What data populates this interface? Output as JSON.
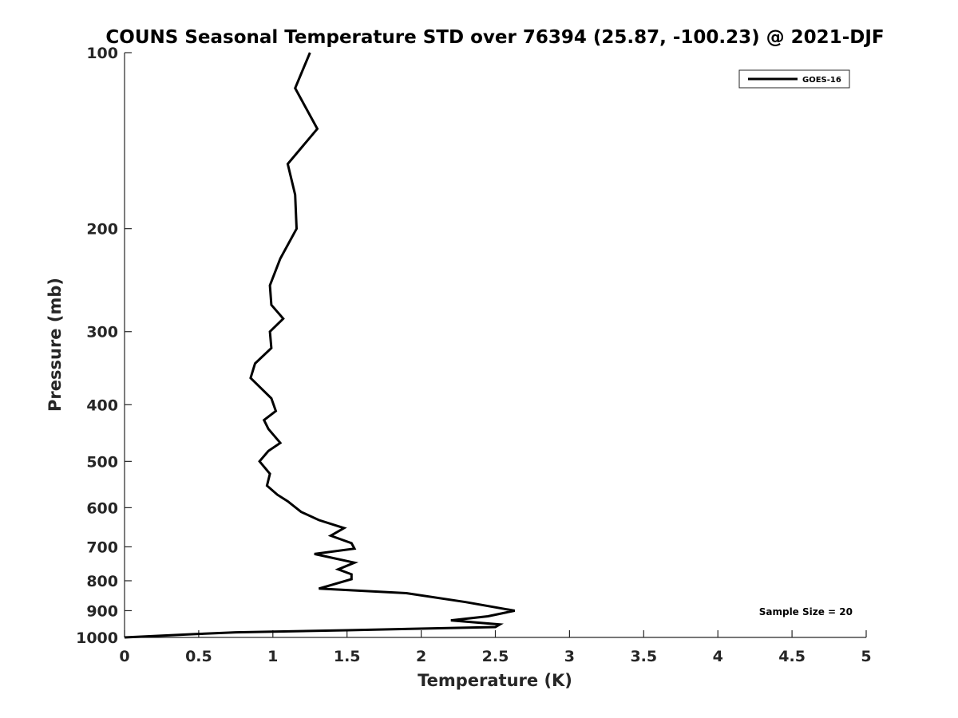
{
  "chart_data": {
    "type": "line",
    "title": "COUNS Seasonal Temperature STD over 76394 (25.87, -100.23) @ 2021-DJF",
    "xlabel": "Temperature (K)",
    "ylabel": "Pressure (mb)",
    "xlim": [
      0,
      5
    ],
    "ylim": [
      1000,
      100
    ],
    "y_scale": "log",
    "y_reversed": true,
    "x_ticks": [
      "0",
      "0.5",
      "1",
      "1.5",
      "2",
      "2.5",
      "3",
      "3.5",
      "4",
      "4.5",
      "5"
    ],
    "y_ticks": [
      "100",
      "200",
      "300",
      "400",
      "500",
      "600",
      "700",
      "800",
      "900",
      "1000"
    ],
    "grid": false,
    "legend_position": "top-right",
    "annotation": "Sample Size = 20",
    "series": [
      {
        "name": "GOES-16",
        "color": "#000000",
        "points": [
          [
            1.25,
            100
          ],
          [
            1.15,
            115
          ],
          [
            1.3,
            135
          ],
          [
            1.1,
            155
          ],
          [
            1.15,
            175
          ],
          [
            1.16,
            200
          ],
          [
            1.05,
            225
          ],
          [
            0.98,
            250
          ],
          [
            0.99,
            270
          ],
          [
            1.07,
            285
          ],
          [
            0.98,
            300
          ],
          [
            0.99,
            320
          ],
          [
            0.88,
            340
          ],
          [
            0.85,
            360
          ],
          [
            0.99,
            390
          ],
          [
            1.02,
            410
          ],
          [
            0.94,
            425
          ],
          [
            0.97,
            440
          ],
          [
            1.05,
            465
          ],
          [
            0.97,
            480
          ],
          [
            0.91,
            500
          ],
          [
            0.98,
            525
          ],
          [
            0.96,
            550
          ],
          [
            1.03,
            570
          ],
          [
            1.1,
            585
          ],
          [
            1.19,
            610
          ],
          [
            1.31,
            630
          ],
          [
            1.48,
            650
          ],
          [
            1.39,
            670
          ],
          [
            1.53,
            690
          ],
          [
            1.55,
            705
          ],
          [
            1.28,
            720
          ],
          [
            1.55,
            745
          ],
          [
            1.44,
            765
          ],
          [
            1.53,
            780
          ],
          [
            1.53,
            795
          ],
          [
            1.31,
            825
          ],
          [
            1.9,
            840
          ],
          [
            2.3,
            870
          ],
          [
            2.63,
            900
          ],
          [
            2.45,
            920
          ],
          [
            2.2,
            935
          ],
          [
            2.53,
            950
          ],
          [
            2.5,
            960
          ],
          [
            1.5,
            972
          ],
          [
            0.75,
            980
          ],
          [
            0.48,
            987
          ],
          [
            0,
            1000
          ]
        ]
      }
    ]
  }
}
